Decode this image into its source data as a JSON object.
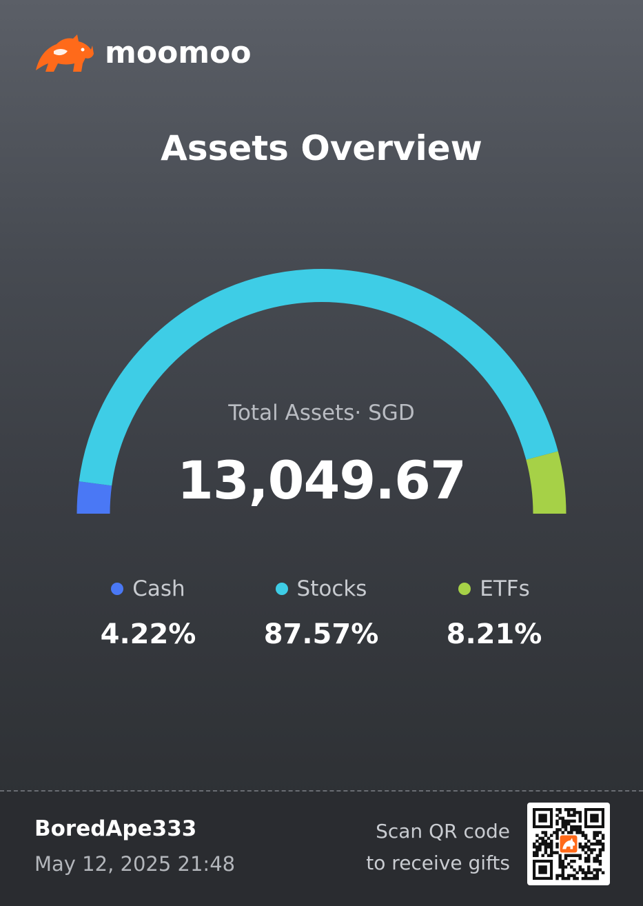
{
  "brand": {
    "name": "moomoo",
    "accent_color": "#ff6a1a"
  },
  "page_title": "Assets Overview",
  "total": {
    "label": "Total Assets· SGD",
    "value": "13,049.67"
  },
  "allocation": [
    {
      "name": "Cash",
      "percent_label": "4.22%",
      "percent": 4.22,
      "color": "#4a78f5"
    },
    {
      "name": "Stocks",
      "percent_label": "87.57%",
      "percent": 87.57,
      "color": "#3ecde6"
    },
    {
      "name": "ETFs",
      "percent_label": "8.21%",
      "percent": 8.21,
      "color": "#a6d147"
    }
  ],
  "footer": {
    "username": "BoredApe333",
    "timestamp": "May 12, 2025 21:48",
    "scan_line1": "Scan QR code",
    "scan_line2": "to receive gifts",
    "qr_icon": "qr-code-icon"
  }
}
